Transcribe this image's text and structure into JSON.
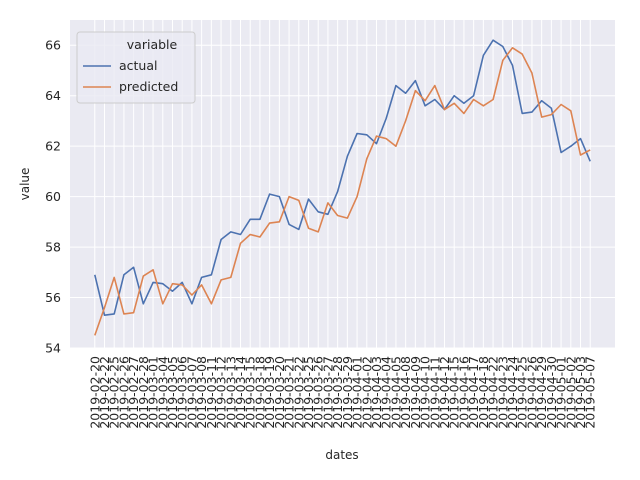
{
  "chart_data": {
    "type": "line",
    "xlabel": "dates",
    "ylabel": "value",
    "categories": [
      "2019-02-20",
      "2019-02-22",
      "2019-02-25",
      "2019-02-26",
      "2019-02-27",
      "2019-02-28",
      "2019-03-01",
      "2019-03-04",
      "2019-03-05",
      "2019-03-06",
      "2019-03-07",
      "2019-03-08",
      "2019-03-11",
      "2019-03-12",
      "2019-03-13",
      "2019-03-14",
      "2019-03-15",
      "2019-03-18",
      "2019-03-19",
      "2019-03-20",
      "2019-03-21",
      "2019-03-22",
      "2019-03-25",
      "2019-03-26",
      "2019-03-27",
      "2019-03-28",
      "2019-03-29",
      "2019-04-01",
      "2019-04-02",
      "2019-04-03",
      "2019-04-04",
      "2019-04-05",
      "2019-04-08",
      "2019-04-09",
      "2019-04-10",
      "2019-04-11",
      "2019-04-12",
      "2019-04-15",
      "2019-04-16",
      "2019-04-17",
      "2019-04-18",
      "2019-04-22",
      "2019-04-23",
      "2019-04-24",
      "2019-04-25",
      "2019-04-26",
      "2019-04-29",
      "2019-04-30",
      "2019-05-01",
      "2019-05-02",
      "2019-05-03",
      "2019-05-07"
    ],
    "series": [
      {
        "name": "actual",
        "color": "#4c72b0",
        "values": [
          56.9,
          55.3,
          55.35,
          56.9,
          57.2,
          55.75,
          56.6,
          56.55,
          56.25,
          56.6,
          55.75,
          56.8,
          56.9,
          58.3,
          58.6,
          58.5,
          59.1,
          59.1,
          60.1,
          60.0,
          58.9,
          58.7,
          59.9,
          59.4,
          59.3,
          60.2,
          61.6,
          62.5,
          62.45,
          62.1,
          63.1,
          64.4,
          64.1,
          64.6,
          63.6,
          63.85,
          63.45,
          64.0,
          63.7,
          64.0,
          65.6,
          66.2,
          65.95,
          65.2,
          63.3,
          63.35,
          63.8,
          63.5,
          61.75,
          62.0,
          62.3,
          61.4
        ]
      },
      {
        "name": "predicted",
        "color": "#dd8452",
        "values": [
          54.5,
          55.6,
          56.8,
          55.35,
          55.4,
          56.85,
          57.1,
          55.75,
          56.55,
          56.5,
          56.1,
          56.5,
          55.75,
          56.7,
          56.8,
          58.15,
          58.5,
          58.4,
          58.95,
          59.0,
          60.0,
          59.85,
          58.75,
          58.6,
          59.75,
          59.25,
          59.15,
          60.0,
          61.5,
          62.4,
          62.3,
          62.0,
          63.0,
          64.2,
          63.8,
          64.4,
          63.45,
          63.7,
          63.3,
          63.85,
          63.6,
          63.85,
          65.4,
          65.9,
          65.65,
          64.9,
          63.15,
          63.25,
          63.65,
          63.4,
          61.65,
          61.85
        ]
      }
    ],
    "ylim": [
      54,
      67
    ],
    "yticks": [
      54,
      56,
      58,
      60,
      62,
      64,
      66
    ],
    "grid": true,
    "legend": {
      "title": "variable",
      "position": "upper left"
    }
  }
}
